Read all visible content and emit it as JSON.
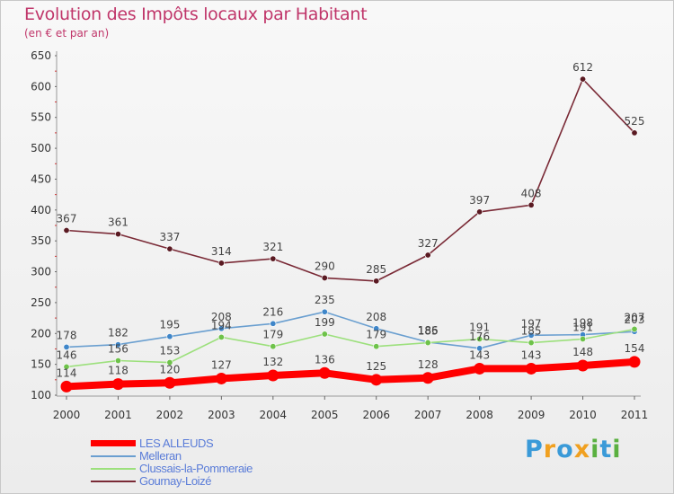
{
  "header": {
    "title": "Evolution des Impôts locaux par Habitant",
    "subtitle": "(en € et par an)"
  },
  "logo": {
    "text": "Proxiti"
  },
  "colors": {
    "LES ALLEUDS": "#ff0000",
    "Melleran": "#6a9fd0",
    "Clussais-la-Pommeraie": "#9ce07c",
    "Gournay-Loizé": "#7a2a36"
  },
  "chart_data": {
    "type": "line",
    "x": [
      "2000",
      "2001",
      "2002",
      "2003",
      "2004",
      "2005",
      "2006",
      "2007",
      "2008",
      "2009",
      "2010",
      "2011"
    ],
    "ylim": [
      100,
      650
    ],
    "yticks": [
      100,
      150,
      200,
      250,
      300,
      350,
      400,
      450,
      500,
      550,
      600,
      650
    ],
    "grid": false,
    "legend_position": "bottom-left",
    "series": [
      {
        "name": "LES ALLEUDS",
        "values": [
          114,
          118,
          120,
          127,
          132,
          136,
          125,
          128,
          143,
          143,
          148,
          154
        ]
      },
      {
        "name": "Melleran",
        "values": [
          178,
          182,
          195,
          208,
          216,
          235,
          208,
          186,
          176,
          197,
          198,
          203
        ]
      },
      {
        "name": "Clussais-la-Pommeraie",
        "values": [
          146,
          156,
          153,
          194,
          179,
          199,
          179,
          185,
          191,
          185,
          191,
          207
        ]
      },
      {
        "name": "Gournay-Loizé",
        "values": [
          367,
          361,
          337,
          314,
          321,
          290,
          285,
          327,
          397,
          408,
          612,
          525
        ]
      }
    ]
  }
}
